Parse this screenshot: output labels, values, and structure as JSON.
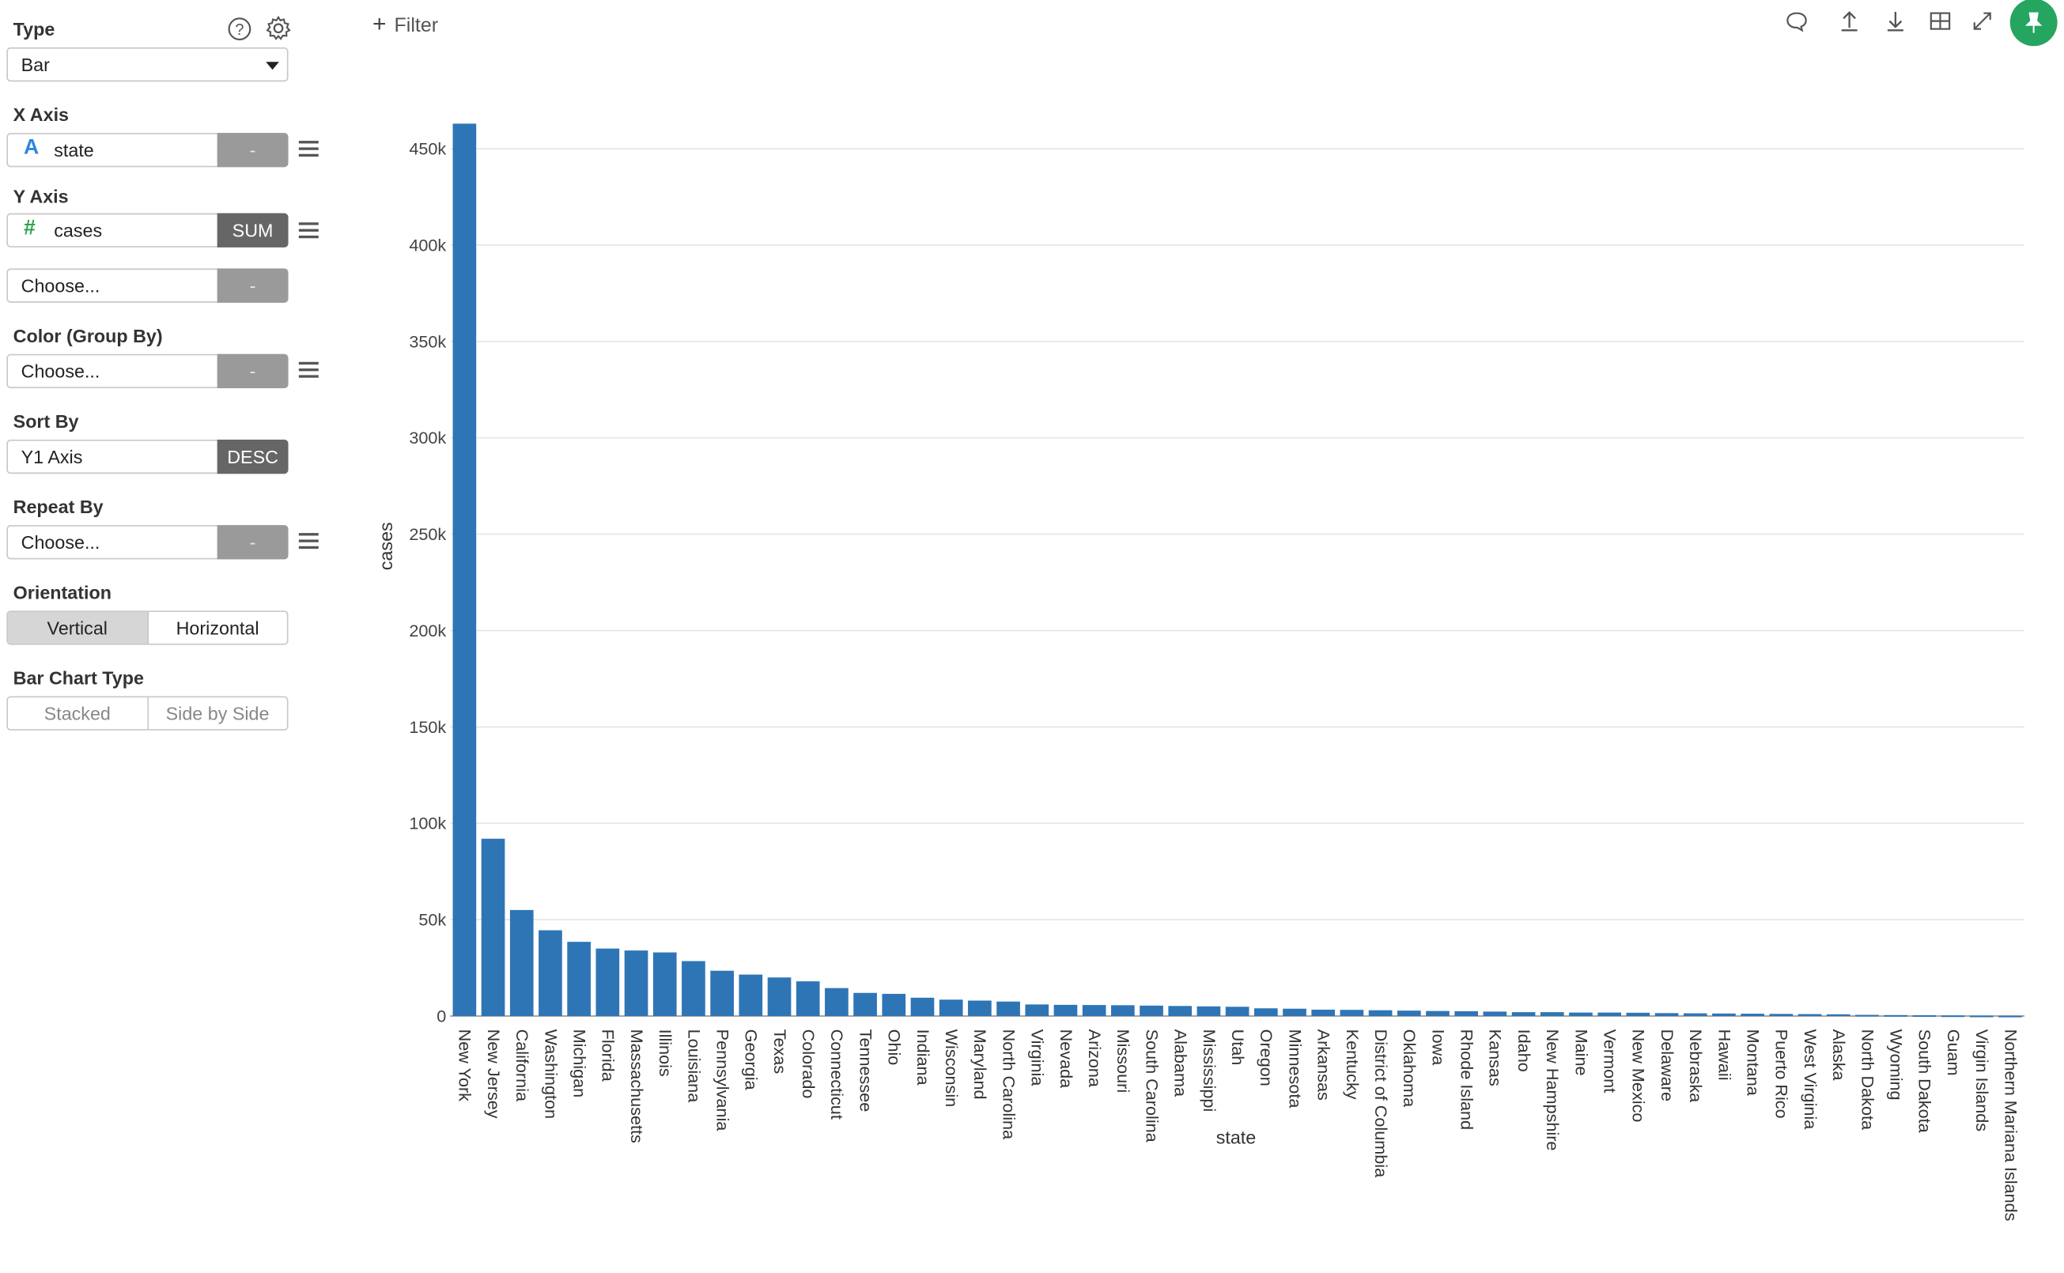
{
  "panel": {
    "type": {
      "label": "Type",
      "value": "Bar"
    },
    "x_axis": {
      "label": "X Axis",
      "type_icon": "A",
      "field": "state",
      "agg": "-"
    },
    "y_axis": {
      "label": "Y Axis",
      "type_icon": "#",
      "field": "cases",
      "agg": "SUM",
      "extra_placeholder": "Choose...",
      "extra_agg": "-"
    },
    "color": {
      "label": "Color (Group By)",
      "placeholder": "Choose...",
      "agg": "-"
    },
    "sort": {
      "label": "Sort By",
      "value": "Y1 Axis",
      "order": "DESC"
    },
    "repeat": {
      "label": "Repeat By",
      "placeholder": "Choose...",
      "agg": "-"
    },
    "orientation": {
      "label": "Orientation",
      "options": [
        "Vertical",
        "Horizontal"
      ],
      "selected": "Vertical"
    },
    "bar_type": {
      "label": "Bar Chart Type",
      "options": [
        "Stacked",
        "Side by Side"
      ]
    }
  },
  "topbar": {
    "filter_label": "Filter",
    "tools": [
      "comment-icon",
      "upload-icon",
      "download-icon",
      "table-icon",
      "expand-icon",
      "pin-icon"
    ]
  },
  "colors": {
    "bar": "#2e75b6",
    "pin": "#25a55f"
  },
  "chart_data": {
    "type": "bar",
    "xlabel": "state",
    "ylabel": "cases",
    "ylim": [
      0,
      465000
    ],
    "yticks": [
      0,
      50000,
      100000,
      150000,
      200000,
      250000,
      300000,
      350000,
      400000,
      450000
    ],
    "ytick_labels": [
      "0",
      "50k",
      "100k",
      "150k",
      "200k",
      "250k",
      "300k",
      "350k",
      "400k",
      "450k"
    ],
    "grid": true,
    "categories": [
      "New York",
      "New Jersey",
      "California",
      "Washington",
      "Michigan",
      "Florida",
      "Massachusetts",
      "Illinois",
      "Louisiana",
      "Pennsylvania",
      "Georgia",
      "Texas",
      "Colorado",
      "Connecticut",
      "Tennessee",
      "Ohio",
      "Indiana",
      "Wisconsin",
      "Maryland",
      "North Carolina",
      "Virginia",
      "Nevada",
      "Arizona",
      "Missouri",
      "South Carolina",
      "Alabama",
      "Mississippi",
      "Utah",
      "Oregon",
      "Minnesota",
      "Arkansas",
      "Kentucky",
      "District of Columbia",
      "Oklahoma",
      "Iowa",
      "Rhode Island",
      "Kansas",
      "Idaho",
      "New Hampshire",
      "Maine",
      "Vermont",
      "New Mexico",
      "Delaware",
      "Nebraska",
      "Hawaii",
      "Montana",
      "Puerto Rico",
      "West Virginia",
      "Alaska",
      "North Dakota",
      "Wyoming",
      "South Dakota",
      "Guam",
      "Virgin Islands",
      "Northern Mariana Islands"
    ],
    "values": [
      463000,
      92000,
      55000,
      44500,
      38500,
      35000,
      34000,
      33000,
      28500,
      23500,
      21500,
      20000,
      18000,
      14500,
      12000,
      11500,
      9500,
      8500,
      8000,
      7500,
      6000,
      5800,
      5700,
      5600,
      5400,
      5200,
      5000,
      4800,
      4000,
      3800,
      3300,
      3200,
      3000,
      2800,
      2600,
      2500,
      2300,
      2000,
      2000,
      1800,
      1800,
      1700,
      1500,
      1400,
      1300,
      1200,
      1100,
      1000,
      900,
      600,
      500,
      400,
      300,
      200,
      150
    ]
  }
}
